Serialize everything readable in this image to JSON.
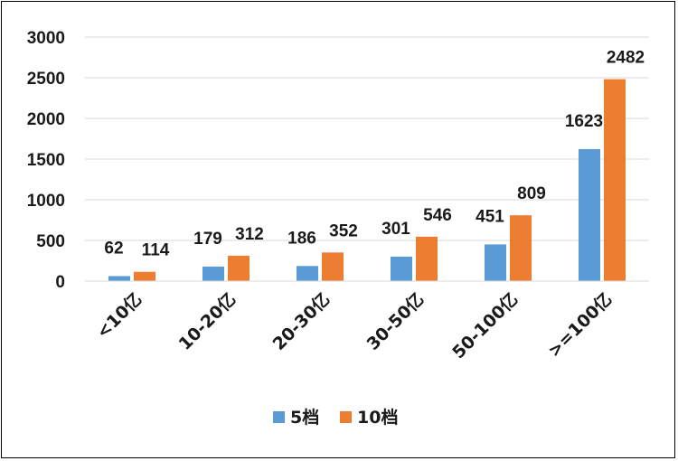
{
  "chart_data": {
    "type": "bar",
    "categories": [
      "<10亿",
      "10-20亿",
      "20-30亿",
      "30-50亿",
      "50-100亿",
      ">=100亿"
    ],
    "series": [
      {
        "name": "5档",
        "values": [
          62,
          179,
          186,
          301,
          451,
          1623
        ],
        "color": "#5B9BD5"
      },
      {
        "name": "10档",
        "values": [
          114,
          312,
          352,
          546,
          809,
          2482
        ],
        "color": "#ED7D31"
      }
    ],
    "ylim": [
      0,
      3000
    ],
    "yticks": [
      0,
      500,
      1000,
      1500,
      2000,
      2500,
      3000
    ],
    "grid": true,
    "legend": "bottom",
    "gridColor": "#d9d9d9"
  }
}
